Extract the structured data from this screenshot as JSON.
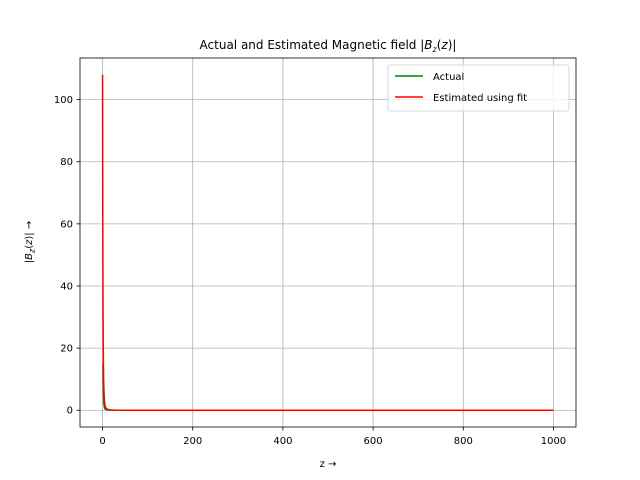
{
  "chart_data": {
    "type": "line",
    "title_prefix": "Actual and Estimated Magnetic field ",
    "title_math": "|B_z(z)|",
    "xlabel": "z  →",
    "ylabel_math": "|B_z(z)|",
    "ylabel_suffix": " →",
    "xlim": [
      -50,
      1050
    ],
    "ylim": [
      -5.4,
      113.4
    ],
    "xticks": [
      0,
      200,
      400,
      600,
      800,
      1000
    ],
    "yticks": [
      0,
      20,
      40,
      60,
      80,
      100
    ],
    "grid": true,
    "legend_position": "top-right",
    "series": [
      {
        "name": "Actual",
        "color": "#008000",
        "x": [
          1,
          1.5,
          2,
          2.5,
          3,
          4,
          5,
          6,
          8,
          10,
          15,
          20,
          30,
          50,
          100,
          200,
          300,
          400,
          500,
          600,
          700,
          800,
          900,
          1000
        ],
        "y": [
          15,
          8,
          4.8,
          3,
          2,
          1,
          0.55,
          0.35,
          0.18,
          0.1,
          0.04,
          0.02,
          0.008,
          0.002,
          0.0003,
          0,
          0,
          0,
          0,
          0,
          0,
          0,
          0,
          0
        ]
      },
      {
        "name": "Estimated using fit",
        "color": "#ff0000",
        "x": [
          0,
          0.5,
          1,
          1.5,
          2,
          2.5,
          3,
          4,
          5,
          6,
          8,
          10,
          15,
          20,
          30,
          50,
          100,
          200,
          300,
          400,
          500,
          600,
          700,
          800,
          900,
          1000
        ],
        "y": [
          108,
          62,
          35,
          22,
          14,
          9.5,
          6.5,
          3.5,
          2,
          1.3,
          0.65,
          0.38,
          0.15,
          0.08,
          0.03,
          0.01,
          0.002,
          0,
          0,
          0,
          0,
          0,
          0,
          0,
          0,
          0
        ]
      }
    ]
  }
}
